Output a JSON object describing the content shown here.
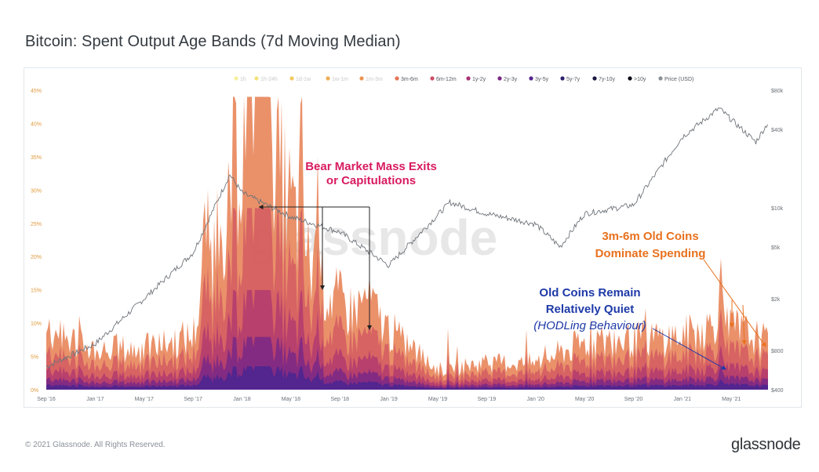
{
  "title": "Bitcoin: Spent Output Age Bands (7d Moving Median)",
  "footer": "© 2021 Glassnode. All Rights Reserved.",
  "brand": "glassnode",
  "watermark": "glassnode",
  "chart_data": {
    "type": "area",
    "title": "Bitcoin: Spent Output Age Bands (7d Moving Median)",
    "x_ticks": [
      "Sep '16",
      "Jan '17",
      "May '17",
      "Sep '17",
      "Jan '18",
      "May '18",
      "Sep '18",
      "Jan '19",
      "May '19",
      "Sep '19",
      "Jan '20",
      "May '20",
      "Sep '20",
      "Jan '21",
      "May '21"
    ],
    "y_left_ticks": [
      "0%",
      "5%",
      "10%",
      "15%",
      "20%",
      "25%",
      "30%",
      "35%",
      "40%",
      "45%"
    ],
    "y_left_range": [
      0,
      45
    ],
    "y_right_ticks": [
      "$400",
      "$800",
      "$2k",
      "$5k",
      "$10k",
      "$40k",
      "$80k"
    ],
    "y_right_scale": "log",
    "legend_position": "top",
    "legend": [
      {
        "label": "1h",
        "color": "#f6ef9e"
      },
      {
        "label": "1h-24h",
        "color": "#f3e27a"
      },
      {
        "label": "1d-1w",
        "color": "#f0c95f"
      },
      {
        "label": "1w-1m",
        "color": "#eeae56"
      },
      {
        "label": "1m-3m",
        "color": "#ec9352"
      },
      {
        "label": "3m-6m",
        "color": "#e57456"
      },
      {
        "label": "6m-12m",
        "color": "#cf4d66"
      },
      {
        "label": "1y-2y",
        "color": "#a83173"
      },
      {
        "label": "2y-3y",
        "color": "#7d2585"
      },
      {
        "label": "3y-5y",
        "color": "#55248f"
      },
      {
        "label": "5y-7y",
        "color": "#2e1f6e"
      },
      {
        "label": "7y-10y",
        "color": "#1a1740"
      },
      {
        "label": ">10y",
        "color": "#0b0b16"
      },
      {
        "label": "Price (USD)",
        "color": "#8a8f96"
      }
    ],
    "price_points": [
      {
        "x": "Sep '16",
        "y": 600
      },
      {
        "x": "Jan '17",
        "y": 900
      },
      {
        "x": "May '17",
        "y": 2000
      },
      {
        "x": "Sep '17",
        "y": 4500
      },
      {
        "x": "Dec '17",
        "y": 18000
      },
      {
        "x": "Jan '18",
        "y": 13000
      },
      {
        "x": "May '18",
        "y": 8500
      },
      {
        "x": "Sep '18",
        "y": 6500
      },
      {
        "x": "Jan '19",
        "y": 3600
      },
      {
        "x": "Jun '19",
        "y": 11000
      },
      {
        "x": "Sep '19",
        "y": 9000
      },
      {
        "x": "Jan '20",
        "y": 7500
      },
      {
        "x": "Mar '20",
        "y": 5000
      },
      {
        "x": "May '20",
        "y": 9000
      },
      {
        "x": "Sep '20",
        "y": 10500
      },
      {
        "x": "Jan '21",
        "y": 35000
      },
      {
        "x": "Apr '21",
        "y": 58000
      },
      {
        "x": "Jul '21",
        "y": 32000
      },
      {
        "x": "Aug '21",
        "y": 45000
      }
    ],
    "spend_points": [
      {
        "x": "Sep '16",
        "y": 9
      },
      {
        "x": "Jan '17",
        "y": 6
      },
      {
        "x": "May '17",
        "y": 6
      },
      {
        "x": "Sep '17",
        "y": 8
      },
      {
        "x": "Oct '17",
        "y": 16
      },
      {
        "x": "Feb '18",
        "y": 44
      },
      {
        "x": "Jul '18",
        "y": 16
      },
      {
        "x": "Nov '18",
        "y": 10
      },
      {
        "x": "Jan '19",
        "y": 9
      },
      {
        "x": "May '19",
        "y": 3
      },
      {
        "x": "Sep '19",
        "y": 4
      },
      {
        "x": "Jan '20",
        "y": 4
      },
      {
        "x": "May '20",
        "y": 7
      },
      {
        "x": "Jan '21",
        "y": 8
      },
      {
        "x": "Apr '21",
        "y": 10
      },
      {
        "x": "Aug '21",
        "y": 7
      }
    ],
    "annotations": [
      {
        "text": "Bear Market Mass Exits",
        "color": "#d81b60"
      },
      {
        "text": "or Capitulations",
        "color": "#d81b60"
      },
      {
        "text": "3m-6m Old Coins",
        "color": "#e8711e"
      },
      {
        "text": "Dominate Spending",
        "color": "#e8711e"
      },
      {
        "text": "Old Coins Remain",
        "color": "#1e3aa8"
      },
      {
        "text": "Relatively Quiet",
        "color": "#1e3aa8"
      },
      {
        "text": "(HODLing Behaviour)",
        "color": "#1e3aa8"
      }
    ]
  }
}
